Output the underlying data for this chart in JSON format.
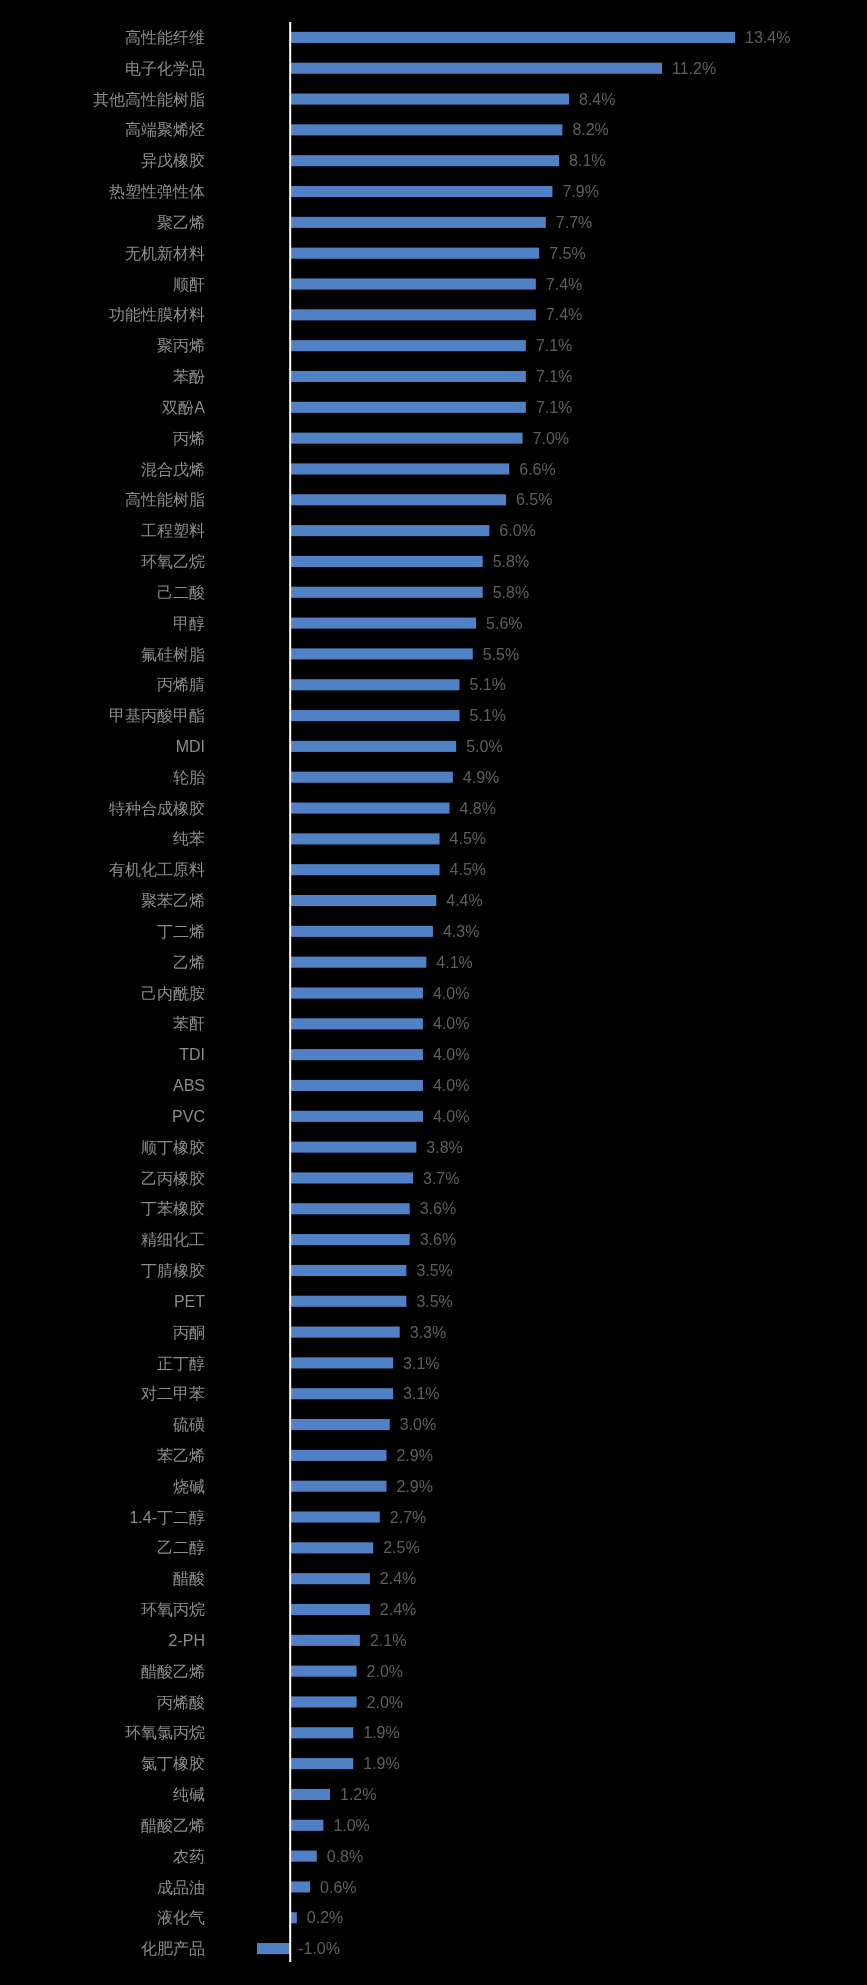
{
  "chart_data": {
    "type": "bar",
    "orientation": "horizontal",
    "color": "#4f81c4",
    "categories": [
      "高性能纤维",
      "电子化学品",
      "其他高性能树脂",
      "高端聚烯烃",
      "异戊橡胶",
      "热塑性弹性体",
      "聚乙烯",
      "无机新材料",
      "顺酐",
      "功能性膜材料",
      "聚丙烯",
      "苯酚",
      "双酚A",
      "丙烯",
      "混合戊烯",
      "高性能树脂",
      "工程塑料",
      "环氧乙烷",
      "己二酸",
      "甲醇",
      "氟硅树脂",
      "丙烯腈",
      "甲基丙酸甲酯",
      "MDI",
      "轮胎",
      "特种合成橡胶",
      "纯苯",
      "有机化工原料",
      "聚苯乙烯",
      "丁二烯",
      "乙烯",
      "己内酰胺",
      "苯酐",
      "TDI",
      "ABS",
      "PVC",
      "顺丁橡胶",
      "乙丙橡胶",
      "丁苯橡胶",
      "精细化工",
      "丁腈橡胶",
      "PET",
      "丙酮",
      "正丁醇",
      "对二甲苯",
      "硫磺",
      "苯乙烯",
      "烧碱",
      "1.4-丁二醇",
      "乙二醇",
      "醋酸",
      "环氧丙烷",
      "2-PH",
      "醋酸乙烯",
      "丙烯酸",
      "环氧氯丙烷",
      "氯丁橡胶",
      "纯碱",
      "醋酸乙烯",
      "农药",
      "成品油",
      "液化气",
      "化肥产品"
    ],
    "values": [
      13.4,
      11.2,
      8.4,
      8.2,
      8.1,
      7.9,
      7.7,
      7.5,
      7.4,
      7.4,
      7.1,
      7.1,
      7.1,
      7.0,
      6.6,
      6.5,
      6.0,
      5.8,
      5.8,
      5.6,
      5.5,
      5.1,
      5.1,
      5.0,
      4.9,
      4.8,
      4.5,
      4.5,
      4.4,
      4.3,
      4.1,
      4.0,
      4.0,
      4.0,
      4.0,
      4.0,
      3.8,
      3.7,
      3.6,
      3.6,
      3.5,
      3.5,
      3.3,
      3.1,
      3.1,
      3.0,
      2.9,
      2.9,
      2.7,
      2.5,
      2.4,
      2.4,
      2.1,
      2.0,
      2.0,
      1.9,
      1.9,
      1.2,
      1.0,
      0.8,
      0.6,
      0.2,
      -1.0
    ],
    "value_labels": [
      "13.4%",
      "11.2%",
      "8.4%",
      "8.2%",
      "8.1%",
      "7.9%",
      "7.7%",
      "7.5%",
      "7.4%",
      "7.4%",
      "7.1%",
      "7.1%",
      "7.1%",
      "7.0%",
      "6.6%",
      "6.5%",
      "6.0%",
      "5.8%",
      "5.8%",
      "5.6%",
      "5.5%",
      "5.1%",
      "5.1%",
      "5.0%",
      "4.9%",
      "4.8%",
      "4.5%",
      "4.5%",
      "4.4%",
      "4.3%",
      "4.1%",
      "4.0%",
      "4.0%",
      "4.0%",
      "4.0%",
      "4.0%",
      "3.8%",
      "3.7%",
      "3.6%",
      "3.6%",
      "3.5%",
      "3.5%",
      "3.3%",
      "3.1%",
      "3.1%",
      "3.0%",
      "2.9%",
      "2.9%",
      "2.7%",
      "2.5%",
      "2.4%",
      "2.4%",
      "2.1%",
      "2.0%",
      "2.0%",
      "1.9%",
      "1.9%",
      "1.2%",
      "1.0%",
      "0.8%",
      "0.6%",
      "0.2%",
      "-1.0%"
    ]
  }
}
